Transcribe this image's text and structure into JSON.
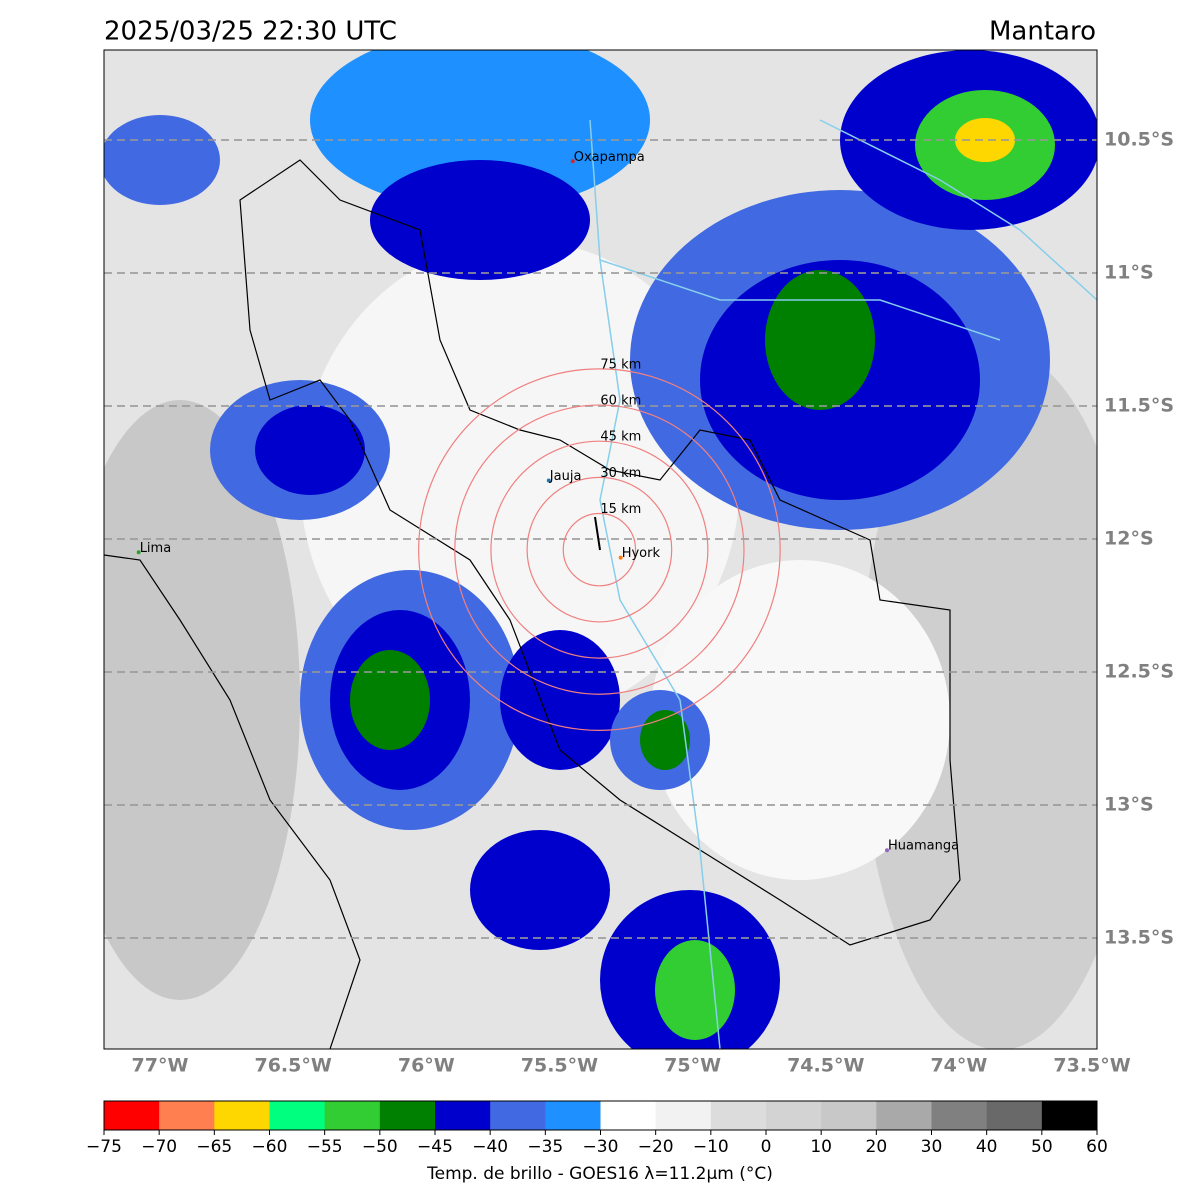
{
  "title": "2025/03/25 22:30 UTC",
  "region": "Mantaro",
  "map": {
    "xticks": [
      {
        "value": -77,
        "label": "77°W"
      },
      {
        "value": -76.5,
        "label": "76.5°W"
      },
      {
        "value": -76,
        "label": "76°W"
      },
      {
        "value": -75.5,
        "label": "75.5°W"
      },
      {
        "value": -75,
        "label": "75°W"
      },
      {
        "value": -74.5,
        "label": "74.5°W"
      },
      {
        "value": -74,
        "label": "74°W"
      },
      {
        "value": -73.5,
        "label": "73.5°W"
      }
    ],
    "yticks": [
      {
        "value": -10.5,
        "label": "10.5°S"
      },
      {
        "value": -11,
        "label": "11°S"
      },
      {
        "value": -11.5,
        "label": "11.5°S"
      },
      {
        "value": -12,
        "label": "12°S"
      },
      {
        "value": -12.5,
        "label": "12.5°S"
      },
      {
        "value": -13,
        "label": "13°S"
      },
      {
        "value": -13.5,
        "label": "13.5°S"
      }
    ],
    "cities": [
      {
        "name": "Oxapampa",
        "lon": -75.45,
        "lat": -10.58,
        "color": "#d62728"
      },
      {
        "name": "Jauja",
        "lon": -75.54,
        "lat": -11.78,
        "color": "#1f77b4"
      },
      {
        "name": "Hyork",
        "lon": -75.27,
        "lat": -12.07,
        "color": "#ff7f0e"
      },
      {
        "name": "Lima",
        "lon": -77.08,
        "lat": -12.05,
        "color": "#2ca02c"
      },
      {
        "name": "Huamanga",
        "lon": -74.27,
        "lat": -13.17,
        "color": "#9467bd"
      }
    ],
    "radar": {
      "lon": -75.35,
      "lat": -12.04,
      "color": "#f08080",
      "rings": [
        {
          "value": 15,
          "label": "15 km"
        },
        {
          "value": 30,
          "label": "30 km"
        },
        {
          "value": 45,
          "label": "45 km"
        },
        {
          "value": 60,
          "label": "60 km"
        },
        {
          "value": 75,
          "label": "75 km"
        }
      ]
    }
  },
  "colorbar": {
    "label": "Temp. de brillo - GOES16 λ=11.2μm (°C)",
    "colors": [
      "#ff0000",
      "#ff7f50",
      "#ffd700",
      "#00ff7f",
      "#32cd32",
      "#008000",
      "#0000cd",
      "#4169e1",
      "#1e90ff",
      "#ffffff",
      "#f2f2f2",
      "#dcdcdc",
      "#d3d3d3",
      "#c8c8c8",
      "#a9a9a9",
      "#808080",
      "#696969",
      "#000000"
    ],
    "ticks": [
      {
        "value": -75,
        "label": "−75"
      },
      {
        "value": -70,
        "label": "−70"
      },
      {
        "value": -65,
        "label": "−65"
      },
      {
        "value": -60,
        "label": "−60"
      },
      {
        "value": -55,
        "label": "−55"
      },
      {
        "value": -50,
        "label": "−50"
      },
      {
        "value": -45,
        "label": "−45"
      },
      {
        "value": -40,
        "label": "−40"
      },
      {
        "value": -35,
        "label": "−35"
      },
      {
        "value": -30,
        "label": "−30"
      },
      {
        "value": -20,
        "label": "−20"
      },
      {
        "value": -10,
        "label": "−10"
      },
      0,
      10,
      20,
      30,
      40,
      50,
      60
    ]
  }
}
